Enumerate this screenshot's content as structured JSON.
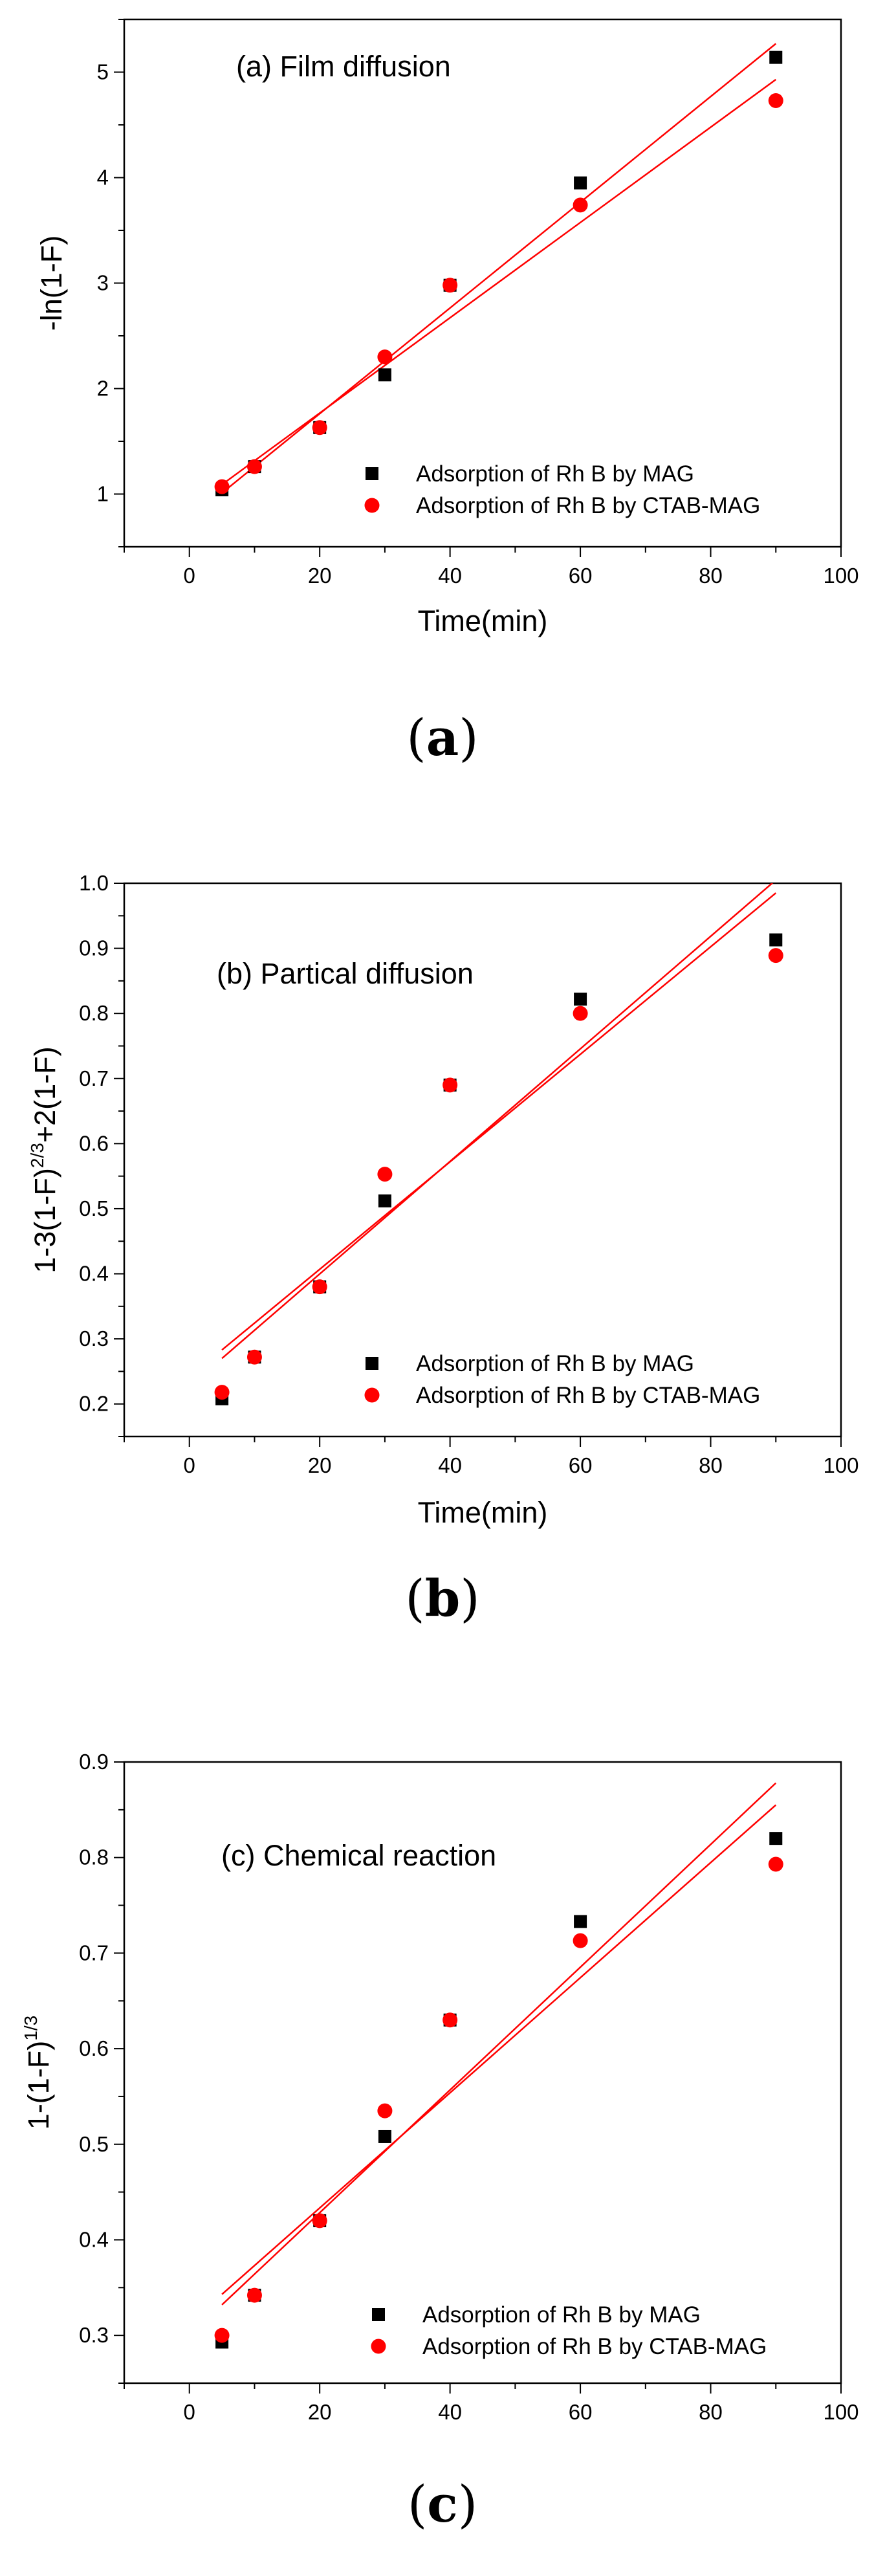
{
  "colors": {
    "series_mag": "#000000",
    "series_ctab": "#ff0000",
    "fit_line": "#ff0000",
    "axis": "#000000"
  },
  "icons": {
    "series_mag": "square-marker-icon",
    "series_ctab": "circle-marker-icon"
  },
  "chart_data": [
    {
      "type": "scatter",
      "title": "(a) Film diffusion",
      "xlabel": "Time(min)",
      "ylabel": "-ln(1-F)",
      "xlim": [
        -10,
        100
      ],
      "ylim": [
        0.5,
        5.5
      ],
      "xticks": [
        0,
        20,
        40,
        60,
        80,
        100
      ],
      "xtick_labels": [
        "0",
        "20",
        "40",
        "60",
        "80",
        "100"
      ],
      "yticks": [
        1,
        2,
        3,
        4,
        5
      ],
      "ytick_labels": [
        "1",
        "2",
        "3",
        "4",
        "5"
      ],
      "series": [
        {
          "name": "Adsorption of Rh B by MAG",
          "marker": "square",
          "x": [
            5,
            10,
            20,
            30,
            40,
            60,
            90
          ],
          "y": [
            1.04,
            1.26,
            1.63,
            2.13,
            2.98,
            3.95,
            5.14
          ],
          "fit": {
            "x": [
              5,
              90
            ],
            "y": [
              1.01,
              5.27
            ]
          }
        },
        {
          "name": "Adsorption of Rh B by CTAB-MAG",
          "marker": "circle",
          "x": [
            5,
            10,
            20,
            30,
            40,
            60,
            90
          ],
          "y": [
            1.07,
            1.26,
            1.63,
            2.3,
            2.98,
            3.74,
            4.73
          ],
          "fit": {
            "x": [
              5,
              90
            ],
            "y": [
              1.09,
              4.93
            ]
          }
        }
      ],
      "caption": "a"
    },
    {
      "type": "scatter",
      "title": "(b) Partical diffusion",
      "xlabel": "Time(min)",
      "ylabel_main": "1-3(1-F)",
      "ylabel_sup": "2/3",
      "ylabel_tail": "+2(1-F)",
      "ylabel": "1-3(1-F)2/3+2(1-F)",
      "xlim": [
        -10,
        100
      ],
      "ylim": [
        0.15,
        1.0
      ],
      "xticks": [
        0,
        20,
        40,
        60,
        80,
        100
      ],
      "xtick_labels": [
        "0",
        "20",
        "40",
        "60",
        "80",
        "100"
      ],
      "yticks": [
        0.2,
        0.3,
        0.4,
        0.5,
        0.6,
        0.7,
        0.8,
        0.9,
        1.0
      ],
      "ytick_labels": [
        "0.2",
        "0.3",
        "0.4",
        "0.5",
        "0.6",
        "0.7",
        "0.8",
        "0.9",
        "1.0"
      ],
      "series": [
        {
          "name": "Adsorption of Rh B by MAG",
          "marker": "square",
          "x": [
            5,
            10,
            20,
            30,
            40,
            60,
            90
          ],
          "y": [
            0.208,
            0.272,
            0.38,
            0.512,
            0.69,
            0.822,
            0.913
          ],
          "fit": {
            "x": [
              5,
              90
            ],
            "y": [
              0.27,
              1.005
            ]
          }
        },
        {
          "name": "Adsorption of Rh B by CTAB-MAG",
          "marker": "circle",
          "x": [
            5,
            10,
            20,
            30,
            40,
            60,
            90
          ],
          "y": [
            0.218,
            0.272,
            0.38,
            0.553,
            0.69,
            0.8,
            0.889
          ],
          "fit": {
            "x": [
              5,
              90
            ],
            "y": [
              0.283,
              0.985
            ]
          }
        }
      ],
      "caption": "b"
    },
    {
      "type": "scatter",
      "title": "(c) Chemical reaction",
      "xlabel": "Time(min)",
      "ylabel_main": "1-(1-F)",
      "ylabel_sup": "1/3",
      "ylabel_tail": "",
      "ylabel": "1-(1-F)1/3",
      "xlim": [
        -10,
        100
      ],
      "ylim": [
        0.25,
        0.9
      ],
      "xticks": [
        0,
        20,
        40,
        60,
        80,
        100
      ],
      "xtick_labels": [
        "0",
        "20",
        "40",
        "60",
        "80",
        "100"
      ],
      "yticks": [
        0.3,
        0.4,
        0.5,
        0.6,
        0.7,
        0.8,
        0.9
      ],
      "ytick_labels": [
        "0.3",
        "0.4",
        "0.5",
        "0.6",
        "0.7",
        "0.8",
        "0.9"
      ],
      "series": [
        {
          "name": "Adsorption of Rh B by MAG",
          "marker": "square",
          "x": [
            5,
            10,
            20,
            30,
            40,
            60,
            90
          ],
          "y": [
            0.293,
            0.342,
            0.42,
            0.508,
            0.63,
            0.733,
            0.82
          ],
          "fit": {
            "x": [
              5,
              90
            ],
            "y": [
              0.332,
              0.878
            ]
          }
        },
        {
          "name": "Adsorption of Rh B by CTAB-MAG",
          "marker": "circle",
          "x": [
            5,
            10,
            20,
            30,
            40,
            60,
            90
          ],
          "y": [
            0.3,
            0.342,
            0.42,
            0.535,
            0.63,
            0.713,
            0.793
          ],
          "fit": {
            "x": [
              5,
              90
            ],
            "y": [
              0.343,
              0.855
            ]
          }
        }
      ],
      "caption": "c"
    }
  ]
}
